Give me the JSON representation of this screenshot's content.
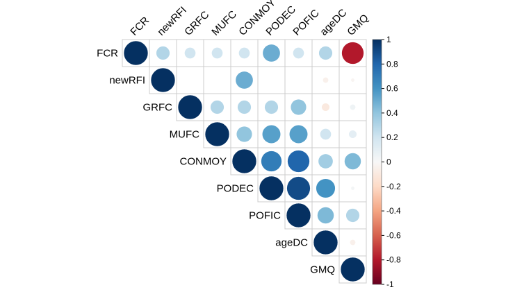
{
  "chart_data": {
    "type": "heatmap",
    "variables": [
      "FCR",
      "newRFI",
      "GRFC",
      "MUFC",
      "CONMOY",
      "PODEC",
      "POFIC",
      "ageDC",
      "GMQ"
    ],
    "matrix": [
      [
        1.0,
        0.3,
        0.2,
        0.2,
        0.2,
        0.5,
        0.2,
        0.3,
        -0.8
      ],
      [
        null,
        1.0,
        0.0,
        0.0,
        0.5,
        0.0,
        0.0,
        -0.05,
        -0.02
      ],
      [
        null,
        null,
        1.0,
        0.3,
        0.3,
        0.3,
        0.4,
        -0.1,
        0.05
      ],
      [
        null,
        null,
        null,
        1.0,
        0.4,
        0.55,
        0.55,
        0.2,
        0.1
      ],
      [
        null,
        null,
        null,
        null,
        1.0,
        0.7,
        0.8,
        0.35,
        0.45
      ],
      [
        null,
        null,
        null,
        null,
        null,
        1.0,
        0.9,
        0.6,
        0.02
      ],
      [
        null,
        null,
        null,
        null,
        null,
        null,
        1.0,
        0.45,
        0.3
      ],
      [
        null,
        null,
        null,
        null,
        null,
        null,
        null,
        1.0,
        -0.05
      ],
      [
        null,
        null,
        null,
        null,
        null,
        null,
        null,
        null,
        1.0
      ]
    ],
    "layout": "upper",
    "method": "circle",
    "colorbar": {
      "min": -1,
      "max": 1,
      "ticks": [
        "1",
        "0.8",
        "0.6",
        "0.4",
        "0.2",
        "0",
        "-0.2",
        "-0.4",
        "-0.6",
        "-0.8",
        "-1"
      ]
    },
    "colors": {
      "negative": "#67001f",
      "mid": "#f7f7f7",
      "positive": "#053061",
      "grid": "#cccccc"
    },
    "title": "",
    "xlabel": "",
    "ylabel": ""
  }
}
